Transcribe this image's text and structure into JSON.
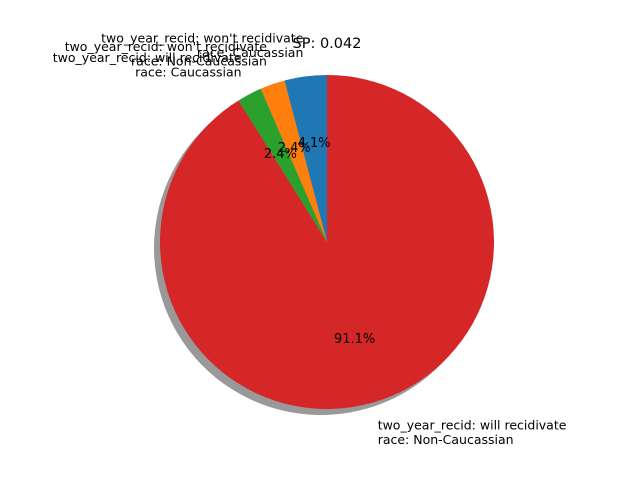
{
  "chart_data": {
    "type": "pie",
    "title": "SP: 0.042",
    "start_angle_deg": 90,
    "counterclockwise": true,
    "shadow": true,
    "slices": [
      {
        "label_lines": [
          "two_year_recid: won't recidivate",
          "race: Caucassian"
        ],
        "percent_label": "4.1%",
        "value": 4.1,
        "color": "#1f77b4"
      },
      {
        "label_lines": [
          "two_year_recid: won't recidivate",
          "race: Non-Caucassian"
        ],
        "percent_label": "2.4%",
        "value": 2.4,
        "color": "#ff7f0e"
      },
      {
        "label_lines": [
          "two_year_recid: will recidivate",
          "race: Caucassian"
        ],
        "percent_label": "2.4%",
        "value": 2.4,
        "color": "#2ca02c"
      },
      {
        "label_lines": [
          "two_year_recid: will recidivate",
          "race: Non-Caucassian"
        ],
        "percent_label": "91.1%",
        "value": 91.1,
        "color": "#d62728"
      }
    ]
  }
}
